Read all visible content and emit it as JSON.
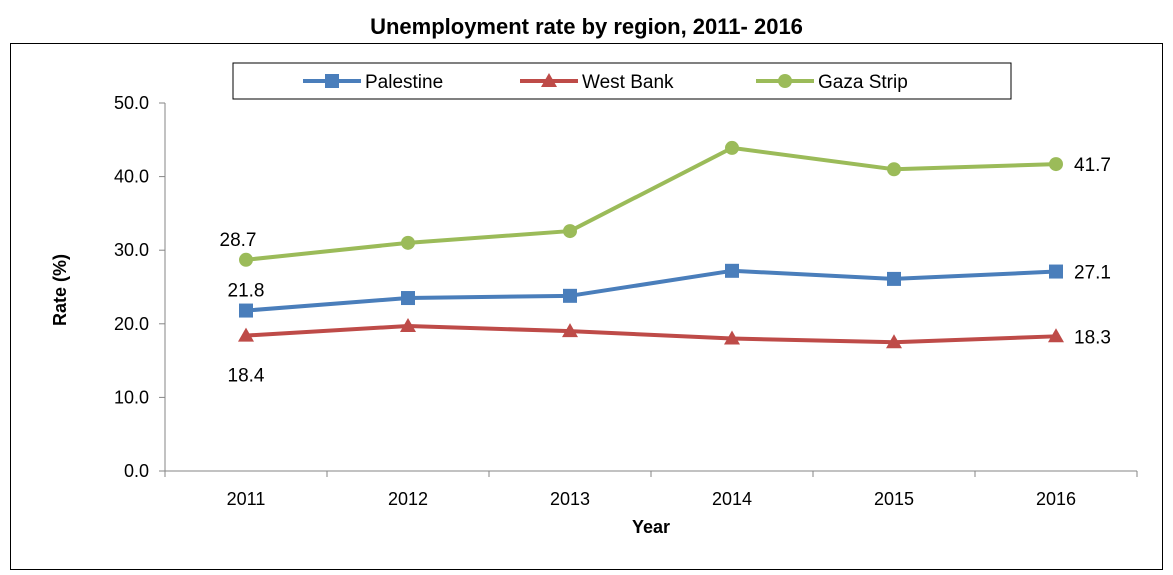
{
  "chart_data": {
    "type": "line",
    "title": "Unemployment rate by region, 2011- 2016",
    "xlabel": "Year",
    "ylabel": "Rate (%)",
    "categories": [
      "2011",
      "2012",
      "2013",
      "2014",
      "2015",
      "2016"
    ],
    "ylim": [
      0,
      50
    ],
    "yticks": [
      "0.0",
      "10.0",
      "20.0",
      "30.0",
      "40.0",
      "50.0"
    ],
    "grid": false,
    "legend_position": "top",
    "series": [
      {
        "name": "Palestine",
        "color": "#4a7ebb",
        "marker": "square",
        "values": [
          21.8,
          23.5,
          23.8,
          27.2,
          26.1,
          27.1
        ],
        "labels": [
          {
            "index": 0,
            "text": "21.8"
          },
          {
            "index": 5,
            "text": "27.1"
          }
        ]
      },
      {
        "name": "West Bank",
        "color": "#be4b48",
        "marker": "triangle",
        "values": [
          18.4,
          19.7,
          19.0,
          18.0,
          17.5,
          18.3
        ],
        "labels": [
          {
            "index": 0,
            "text": "18.4"
          },
          {
            "index": 5,
            "text": "18.3"
          }
        ]
      },
      {
        "name": "Gaza Strip",
        "color": "#9bbb59",
        "marker": "circle",
        "values": [
          28.7,
          31.0,
          32.6,
          43.9,
          41.0,
          41.7
        ],
        "labels": [
          {
            "index": 0,
            "text": "28.7"
          },
          {
            "index": 5,
            "text": "41.7"
          }
        ]
      }
    ]
  }
}
